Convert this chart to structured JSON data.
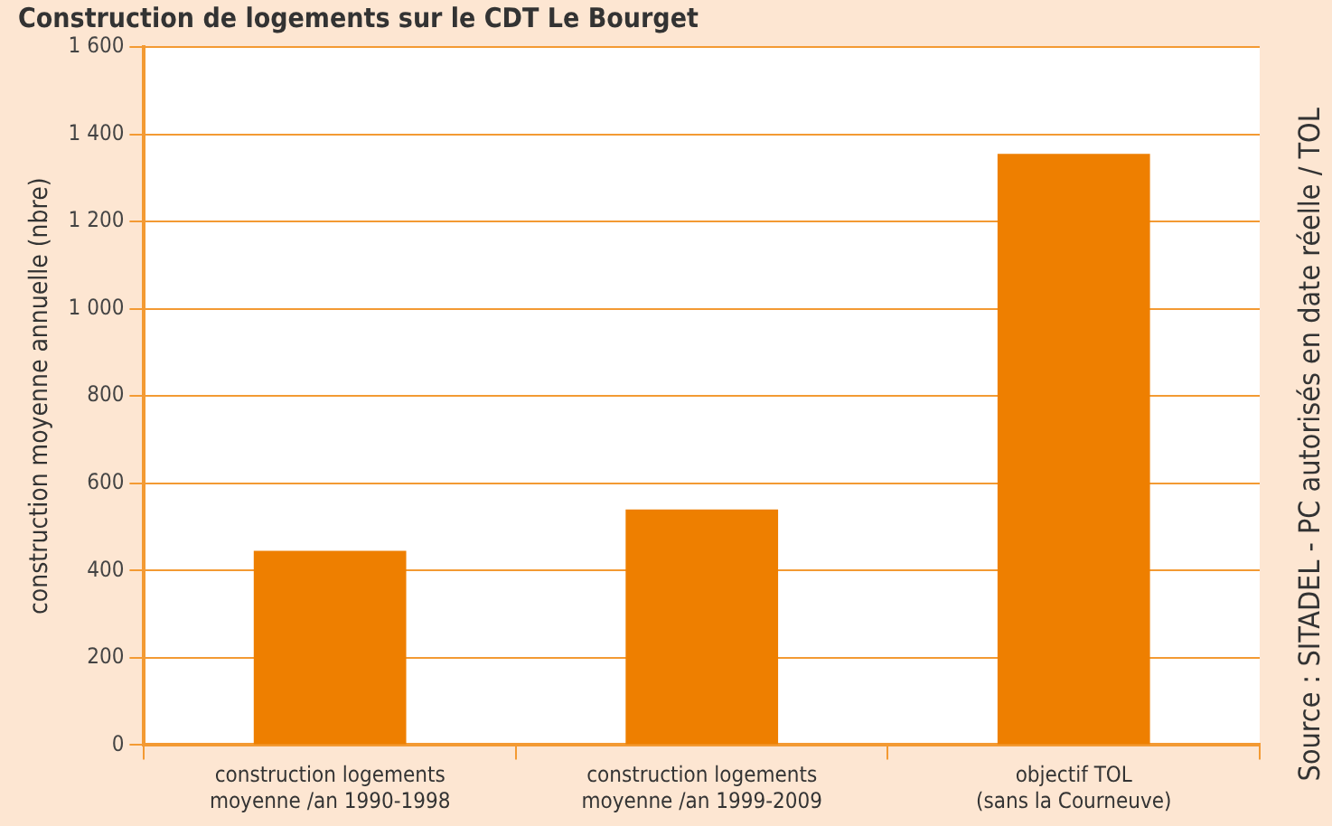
{
  "chart_data": {
    "type": "bar",
    "title": "Construction de logements sur le CDT Le Bourget",
    "ylabel": "construction moyenne annuelle (nbre)",
    "categories": [
      "construction logements moyenne /an 1990-1998",
      "construction logements moyenne /an 1999-2009",
      "objectif TOL (sans la Courneuve)"
    ],
    "values": [
      445,
      540,
      1355
    ],
    "color": "#ee7f00",
    "ylim": [
      0,
      1600
    ],
    "yticks": [
      {
        "value": 0,
        "label": "0"
      },
      {
        "value": 200,
        "label": "200"
      },
      {
        "value": 400,
        "label": "400"
      },
      {
        "value": 600,
        "label": "600"
      },
      {
        "value": 800,
        "label": "800"
      },
      {
        "value": 1000,
        "label": "1 000"
      },
      {
        "value": 1200,
        "label": "1 200"
      },
      {
        "value": 1400,
        "label": "1 400"
      },
      {
        "value": 1600,
        "label": "1 600"
      }
    ],
    "grid": "y",
    "legend": false,
    "annotations": [
      "Source : SITADEL - PC autorisés en date réelle / TOL"
    ]
  }
}
